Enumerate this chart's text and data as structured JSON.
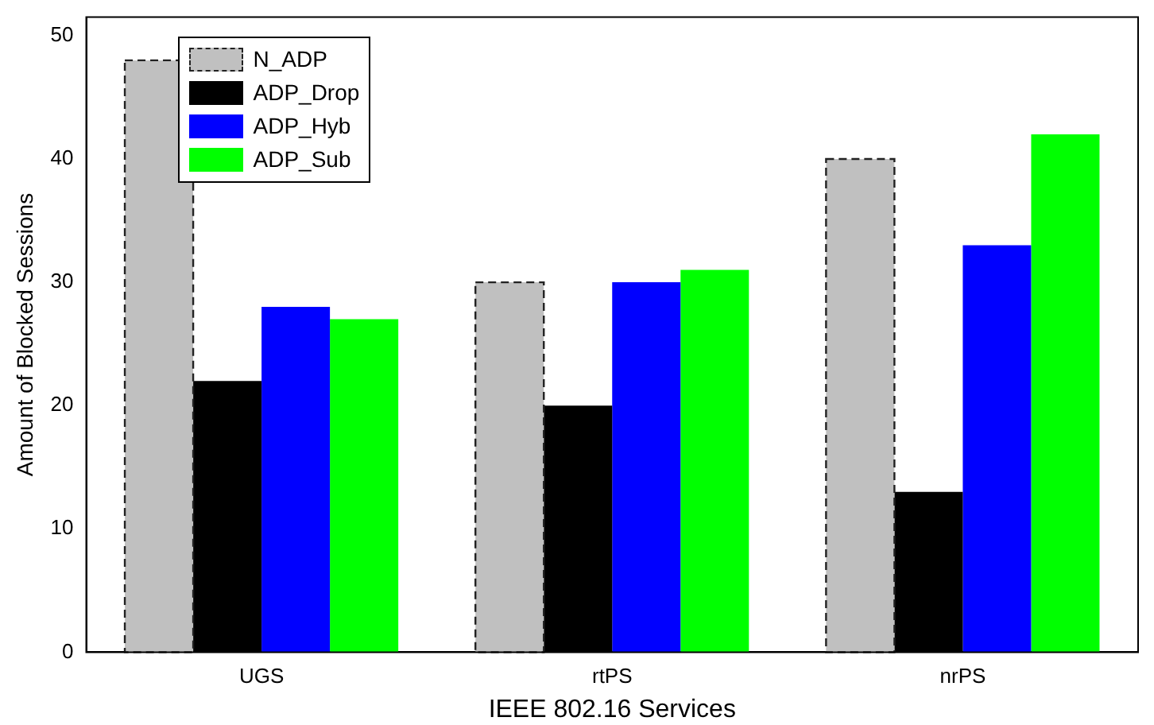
{
  "chart_data": {
    "type": "bar",
    "xlabel": "IEEE 802.16 Services",
    "ylabel": "Amount of Blocked Sessions",
    "categories": [
      "UGS",
      "rtPS",
      "nrPS"
    ],
    "series": [
      {
        "name": "N_ADP",
        "color": "#c0c0c0",
        "line_style": "dashed",
        "values": [
          48,
          30,
          40
        ]
      },
      {
        "name": "ADP_Drop",
        "color": "#000000",
        "values": [
          22,
          20,
          13
        ]
      },
      {
        "name": "ADP_Hyb",
        "color": "#0000ff",
        "values": [
          28,
          30,
          33
        ]
      },
      {
        "name": "ADP_Sub",
        "color": "#00ff00",
        "values": [
          27,
          31,
          42
        ]
      }
    ],
    "ylim": [
      0,
      51.5
    ],
    "yticks": [
      0,
      10,
      20,
      30,
      40,
      50
    ],
    "grid": false,
    "legend": "top left"
  }
}
